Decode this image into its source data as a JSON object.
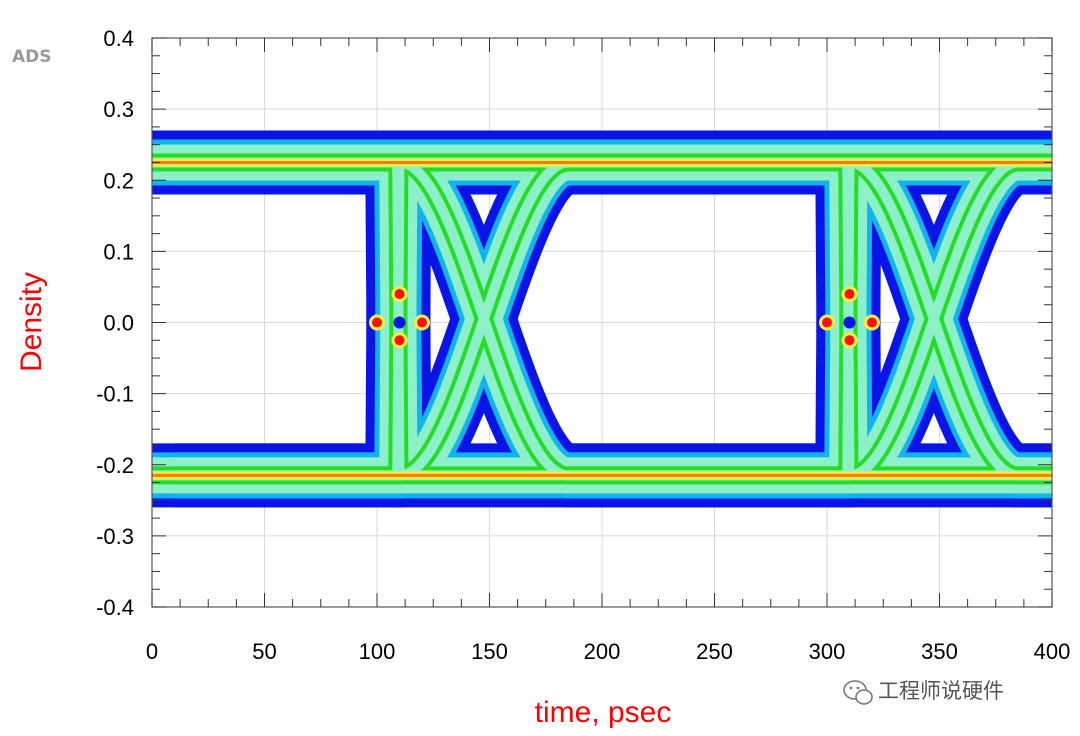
{
  "brand": {
    "logo_text": "ADS"
  },
  "watermark": {
    "text": "工程师说硬件",
    "icon": "wechat-icon"
  },
  "chart_data": {
    "type": "heatmap",
    "title": "",
    "xlabel": "time, psec",
    "ylabel": "Density",
    "xlim": [
      0,
      400
    ],
    "ylim": [
      -0.4,
      0.4
    ],
    "x_ticks": [
      0,
      50,
      100,
      150,
      200,
      250,
      300,
      350,
      400
    ],
    "x_tick_labels": [
      "0",
      "50",
      "100",
      "150",
      "200",
      "250",
      "300",
      "350",
      "400"
    ],
    "y_ticks": [
      0.4,
      0.3,
      0.2,
      0.1,
      0.0,
      -0.1,
      -0.2,
      -0.3,
      -0.4
    ],
    "y_tick_labels": [
      "0.4",
      "0.3",
      "0.2",
      "0.1",
      "0.0",
      "-0.1",
      "-0.2",
      "-0.3",
      "-0.4"
    ],
    "grid": true,
    "eye_diagram": {
      "crossing_times_psec": [
        110,
        310
      ],
      "crossing_level": 0.0,
      "levels": [
        0.225,
        -0.215
      ],
      "outer_envelope": [
        0.32,
        -0.31
      ],
      "inner_eye_opening": [
        0.18,
        -0.16
      ]
    },
    "density_colormap": [
      "#0a14e6",
      "#12b4f0",
      "#8ef0c8",
      "#26dc26",
      "#f0f040",
      "#ff7a10",
      "#ff1010"
    ]
  }
}
